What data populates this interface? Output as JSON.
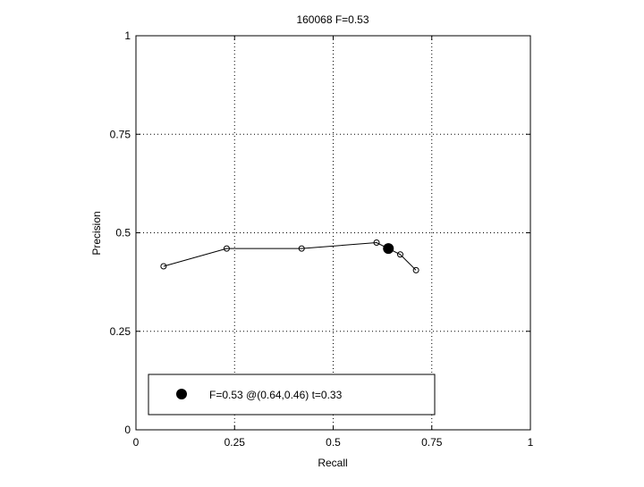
{
  "chart_data": {
    "type": "line",
    "title": "160068 F=0.53",
    "xlabel": "Recall",
    "ylabel": "Precision",
    "xlim": [
      0,
      1
    ],
    "ylim": [
      0,
      1
    ],
    "xticks": [
      "0",
      "0.25",
      "0.5",
      "0.75",
      "1"
    ],
    "yticks": [
      "0",
      "0.25",
      "0.5",
      "0.75",
      "1"
    ],
    "grid": true,
    "series": [
      {
        "x": [
          0.07,
          0.23,
          0.42,
          0.61,
          0.67,
          0.71
        ],
        "y": [
          0.415,
          0.46,
          0.46,
          0.475,
          0.445,
          0.405
        ]
      }
    ],
    "best_point": {
      "x": 0.64,
      "y": 0.46
    },
    "legend": {
      "position": "bottom-left",
      "text": "F=0.53 @(0.64,0.46) t=0.33"
    }
  }
}
